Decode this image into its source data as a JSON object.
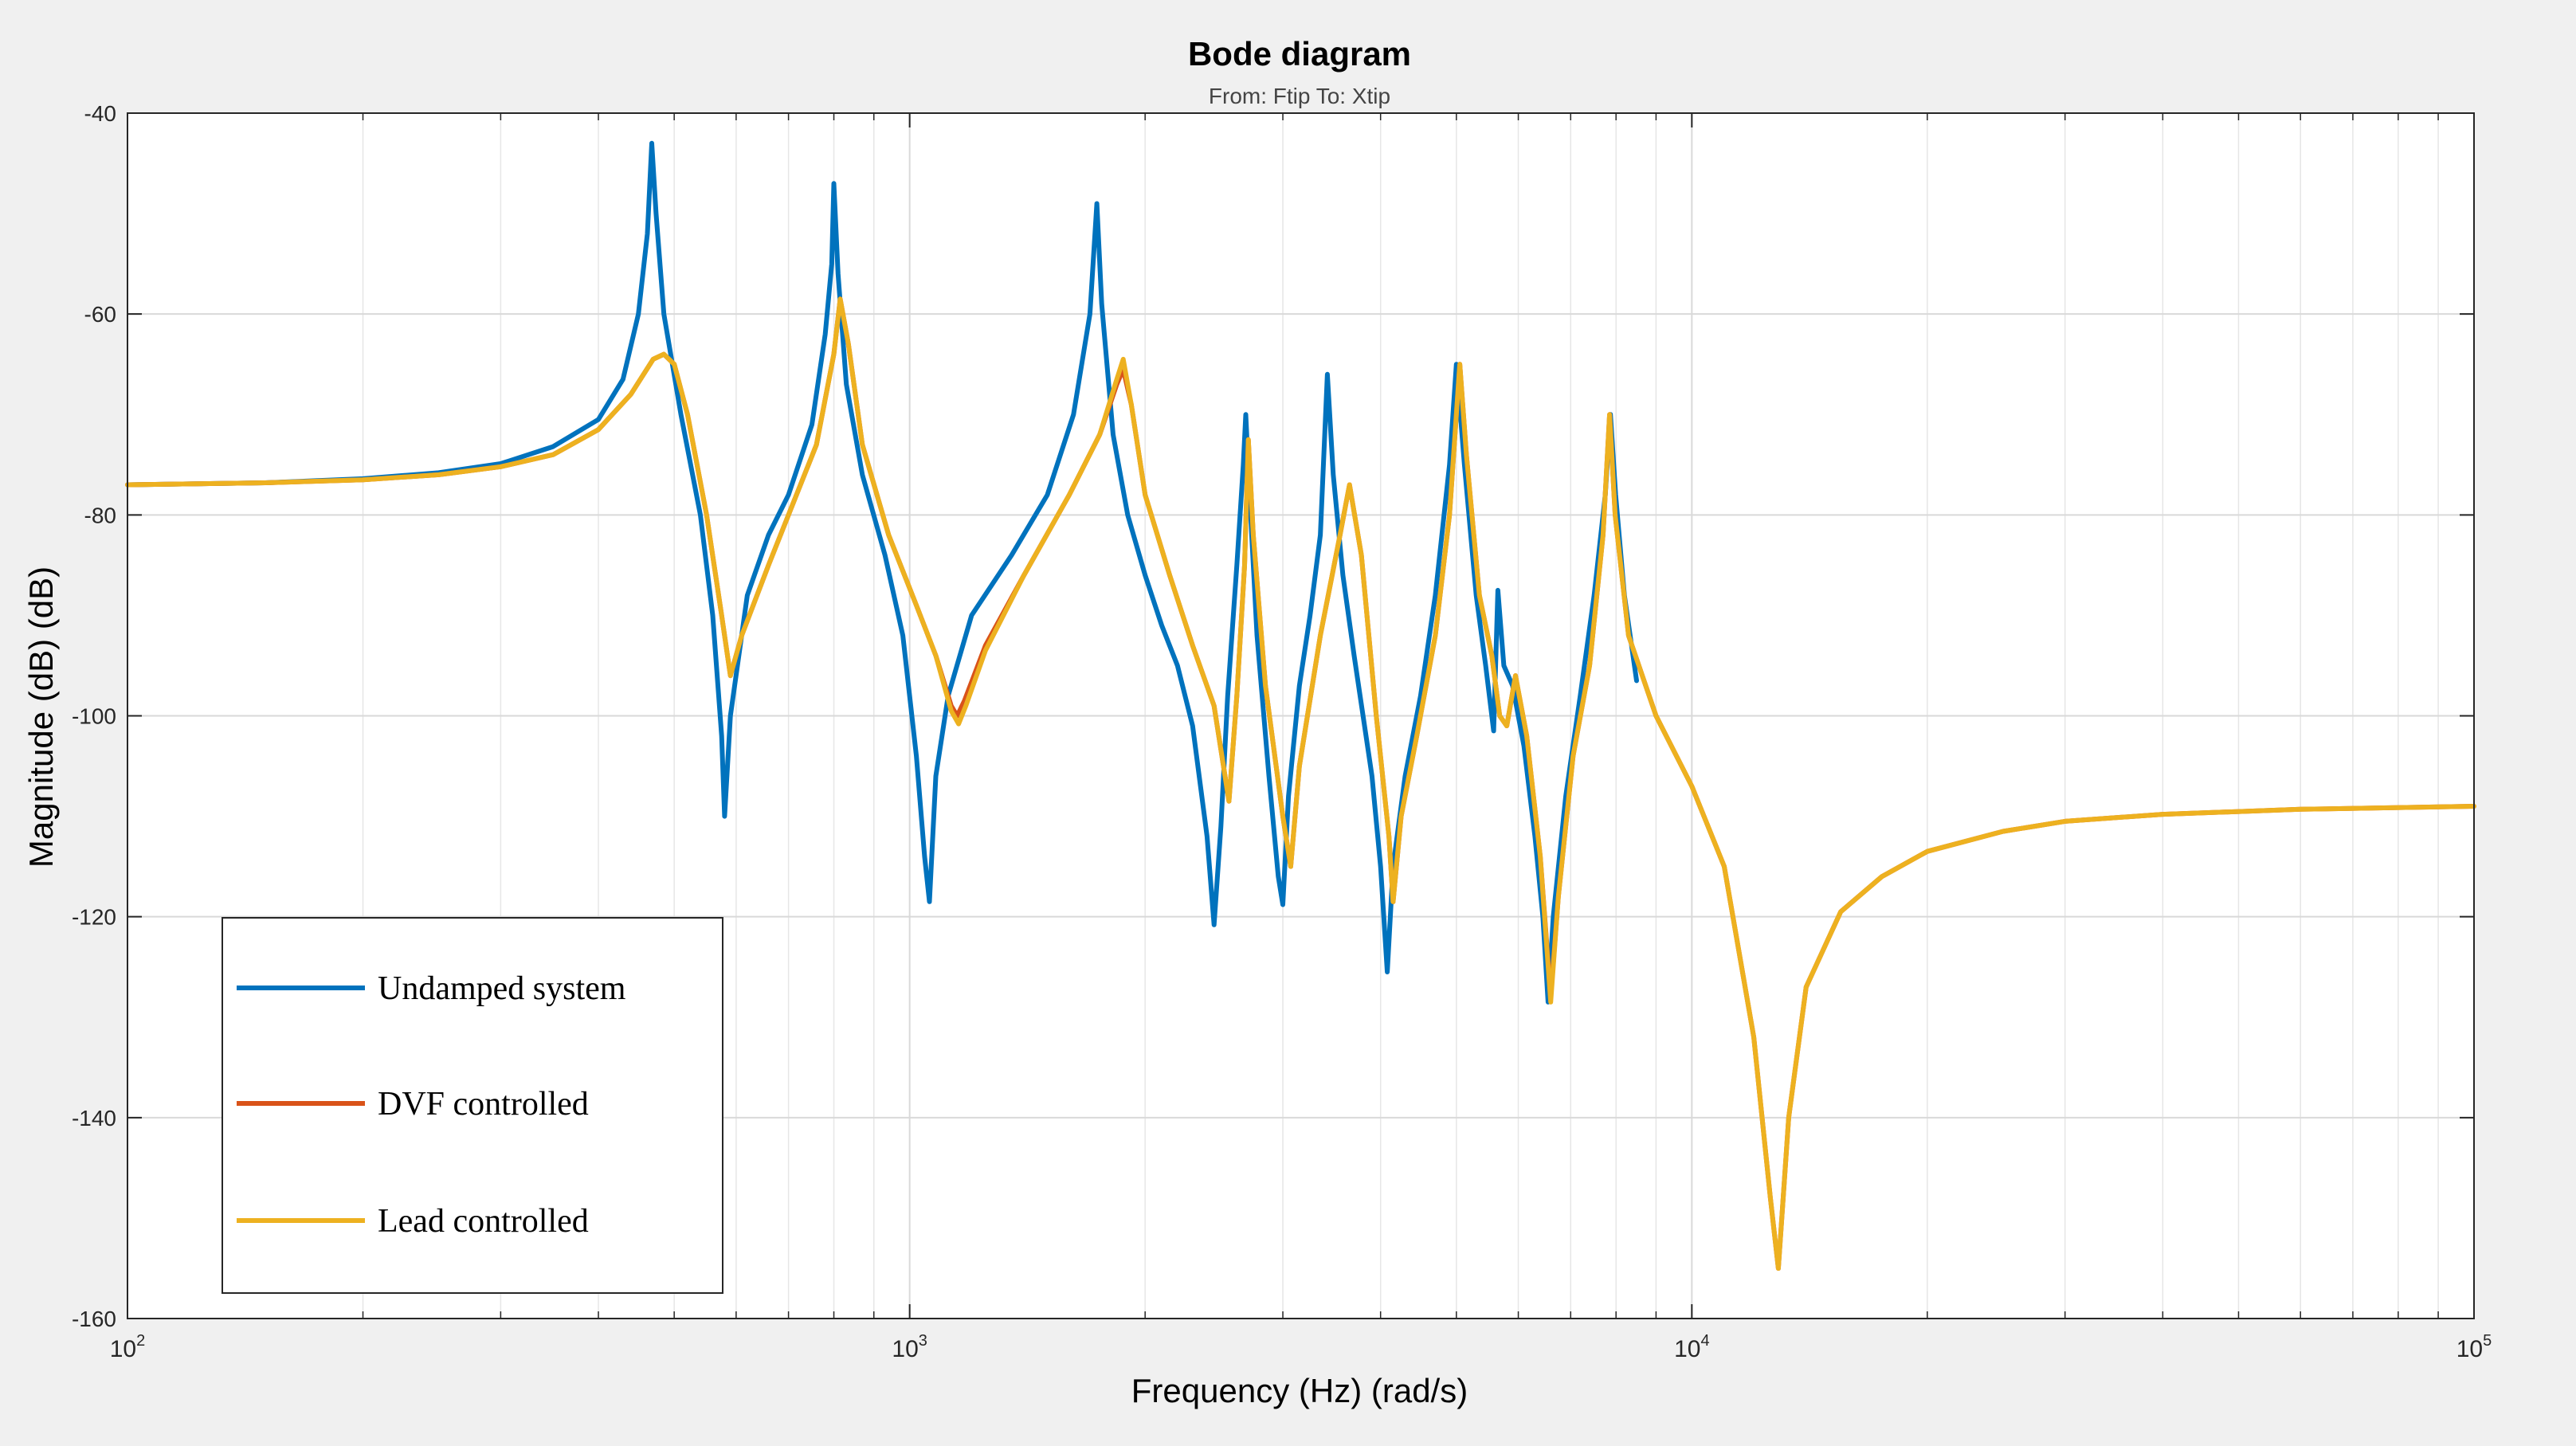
{
  "chart_data": {
    "type": "line",
    "title": "Bode diagram",
    "subtitle": "From: Ftip  To: Xtip",
    "xlabel": "Frequency (Hz)  (rad/s)",
    "ylabel": "Magnitude (dB) (dB)",
    "xscale": "log",
    "xlim": [
      100,
      100000
    ],
    "ylim": [
      -160,
      -40
    ],
    "yticks": [
      -40,
      -60,
      -80,
      -100,
      -120,
      -140,
      -160
    ],
    "xticks": [
      {
        "value": 100,
        "base": "10",
        "exp": "2"
      },
      {
        "value": 1000,
        "base": "10",
        "exp": "3"
      },
      {
        "value": 10000,
        "base": "10",
        "exp": "4"
      },
      {
        "value": 100000,
        "base": "10",
        "exp": "5"
      }
    ],
    "grid": true,
    "legend_position": "bottom-left",
    "series": [
      {
        "name": "Undamped system",
        "color": "#0072bd",
        "points": [
          [
            100,
            -77
          ],
          [
            150,
            -76.8
          ],
          [
            200,
            -76.4
          ],
          [
            250,
            -75.8
          ],
          [
            300,
            -74.9
          ],
          [
            350,
            -73.2
          ],
          [
            400,
            -70.5
          ],
          [
            430,
            -66.5
          ],
          [
            450,
            -60
          ],
          [
            462,
            -52
          ],
          [
            468,
            -43
          ],
          [
            474,
            -50
          ],
          [
            485,
            -60
          ],
          [
            510,
            -70
          ],
          [
            540,
            -80
          ],
          [
            560,
            -90
          ],
          [
            575,
            -102
          ],
          [
            580,
            -110
          ],
          [
            590,
            -100
          ],
          [
            620,
            -88
          ],
          [
            660,
            -82
          ],
          [
            700,
            -78
          ],
          [
            750,
            -71
          ],
          [
            780,
            -62
          ],
          [
            795,
            -55
          ],
          [
            800,
            -47
          ],
          [
            810,
            -56
          ],
          [
            830,
            -67
          ],
          [
            870,
            -76
          ],
          [
            930,
            -84
          ],
          [
            980,
            -92
          ],
          [
            1020,
            -104
          ],
          [
            1045,
            -114
          ],
          [
            1060,
            -118.5
          ],
          [
            1080,
            -106
          ],
          [
            1120,
            -98
          ],
          [
            1200,
            -90
          ],
          [
            1350,
            -84
          ],
          [
            1500,
            -78
          ],
          [
            1620,
            -70
          ],
          [
            1700,
            -60
          ],
          [
            1735,
            -49
          ],
          [
            1760,
            -59
          ],
          [
            1820,
            -72
          ],
          [
            1900,
            -80
          ],
          [
            2000,
            -86
          ],
          [
            2100,
            -91
          ],
          [
            2200,
            -95
          ],
          [
            2300,
            -101
          ],
          [
            2400,
            -112
          ],
          [
            2450,
            -120.8
          ],
          [
            2500,
            -111
          ],
          [
            2550,
            -98
          ],
          [
            2620,
            -85
          ],
          [
            2670,
            -75
          ],
          [
            2690,
            -70
          ],
          [
            2720,
            -78
          ],
          [
            2780,
            -92
          ],
          [
            2880,
            -106
          ],
          [
            2960,
            -116
          ],
          [
            3000,
            -118.8
          ],
          [
            3050,
            -108
          ],
          [
            3150,
            -97
          ],
          [
            3250,
            -90
          ],
          [
            3350,
            -82
          ],
          [
            3420,
            -66
          ],
          [
            3480,
            -76
          ],
          [
            3580,
            -86
          ],
          [
            3700,
            -94
          ],
          [
            3900,
            -106
          ],
          [
            4000,
            -115
          ],
          [
            4080,
            -125.5
          ],
          [
            4150,
            -115
          ],
          [
            4300,
            -106
          ],
          [
            4500,
            -98
          ],
          [
            4700,
            -88
          ],
          [
            4900,
            -75
          ],
          [
            5000,
            -65
          ],
          [
            5120,
            -75
          ],
          [
            5300,
            -88
          ],
          [
            5450,
            -95
          ],
          [
            5580,
            -101.5
          ],
          [
            5650,
            -87.5
          ],
          [
            5750,
            -95
          ],
          [
            5900,
            -97
          ],
          [
            6100,
            -103
          ],
          [
            6300,
            -112
          ],
          [
            6450,
            -120
          ],
          [
            6550,
            -128.5
          ],
          [
            6650,
            -120
          ],
          [
            6900,
            -108
          ],
          [
            7200,
            -98
          ],
          [
            7500,
            -88
          ],
          [
            7750,
            -78
          ],
          [
            7870,
            -70
          ],
          [
            7990,
            -78
          ],
          [
            8200,
            -88
          ],
          [
            8500,
            -96.5
          ]
        ]
      },
      {
        "name": "DVF controlled",
        "color": "#d95319",
        "points": [
          [
            100,
            -77
          ],
          [
            150,
            -76.8
          ],
          [
            200,
            -76.5
          ],
          [
            250,
            -76
          ],
          [
            300,
            -75.2
          ],
          [
            350,
            -74
          ],
          [
            400,
            -71.5
          ],
          [
            440,
            -68
          ],
          [
            470,
            -64.5
          ],
          [
            485,
            -64
          ],
          [
            500,
            -65
          ],
          [
            520,
            -70
          ],
          [
            550,
            -80
          ],
          [
            575,
            -90
          ],
          [
            590,
            -96
          ],
          [
            610,
            -92
          ],
          [
            660,
            -85
          ],
          [
            700,
            -80
          ],
          [
            760,
            -73
          ],
          [
            800,
            -64
          ],
          [
            815,
            -58.5
          ],
          [
            835,
            -63
          ],
          [
            870,
            -73
          ],
          [
            940,
            -82
          ],
          [
            1020,
            -89
          ],
          [
            1080,
            -94
          ],
          [
            1130,
            -99
          ],
          [
            1150,
            -100
          ],
          [
            1175,
            -98.5
          ],
          [
            1250,
            -93
          ],
          [
            1400,
            -86
          ],
          [
            1600,
            -78
          ],
          [
            1750,
            -72
          ],
          [
            1840,
            -67
          ],
          [
            1875,
            -65.5
          ],
          [
            1920,
            -69
          ],
          [
            2000,
            -78
          ],
          [
            2150,
            -86
          ],
          [
            2300,
            -93
          ],
          [
            2450,
            -99
          ],
          [
            2560,
            -108.5
          ],
          [
            2620,
            -98
          ],
          [
            2680,
            -85
          ],
          [
            2710,
            -72.5
          ],
          [
            2750,
            -82
          ],
          [
            2850,
            -97
          ],
          [
            3000,
            -110
          ],
          [
            3070,
            -115
          ],
          [
            3150,
            -105
          ],
          [
            3350,
            -92
          ],
          [
            3550,
            -82
          ],
          [
            3650,
            -77
          ],
          [
            3780,
            -84
          ],
          [
            3950,
            -100
          ],
          [
            4100,
            -112
          ],
          [
            4150,
            -118.5
          ],
          [
            4250,
            -110
          ],
          [
            4450,
            -102
          ],
          [
            4700,
            -92
          ],
          [
            4900,
            -80
          ],
          [
            5050,
            -65
          ],
          [
            5150,
            -74
          ],
          [
            5350,
            -88
          ],
          [
            5550,
            -94
          ],
          [
            5680,
            -100
          ],
          [
            5800,
            -101
          ],
          [
            5950,
            -96
          ],
          [
            6150,
            -102
          ],
          [
            6400,
            -114
          ],
          [
            6600,
            -128
          ],
          [
            6750,
            -118
          ],
          [
            7050,
            -104
          ],
          [
            7400,
            -95
          ],
          [
            7700,
            -82
          ],
          [
            7850,
            -70
          ],
          [
            7980,
            -80
          ],
          [
            8300,
            -92
          ],
          [
            9000,
            -100
          ],
          [
            10000,
            -107
          ],
          [
            11000,
            -115
          ],
          [
            12000,
            -132
          ],
          [
            12600,
            -148
          ],
          [
            12900,
            -155
          ],
          [
            13300,
            -140
          ],
          [
            14000,
            -127
          ],
          [
            15500,
            -119.5
          ],
          [
            17500,
            -116
          ],
          [
            20000,
            -113.5
          ],
          [
            25000,
            -111.5
          ],
          [
            30000,
            -110.5
          ],
          [
            40000,
            -109.8
          ],
          [
            60000,
            -109.3
          ],
          [
            100000,
            -109
          ]
        ]
      },
      {
        "name": "Lead controlled",
        "color": "#edb120",
        "points": [
          [
            100,
            -77
          ],
          [
            150,
            -76.8
          ],
          [
            200,
            -76.5
          ],
          [
            250,
            -76
          ],
          [
            300,
            -75.2
          ],
          [
            350,
            -74
          ],
          [
            400,
            -71.5
          ],
          [
            440,
            -68
          ],
          [
            470,
            -64.5
          ],
          [
            485,
            -64
          ],
          [
            500,
            -65
          ],
          [
            520,
            -70
          ],
          [
            550,
            -80
          ],
          [
            575,
            -90
          ],
          [
            590,
            -96
          ],
          [
            610,
            -92
          ],
          [
            660,
            -85
          ],
          [
            700,
            -80
          ],
          [
            760,
            -73
          ],
          [
            800,
            -64
          ],
          [
            815,
            -58.5
          ],
          [
            835,
            -63
          ],
          [
            870,
            -73
          ],
          [
            940,
            -82
          ],
          [
            1020,
            -89
          ],
          [
            1080,
            -94
          ],
          [
            1130,
            -99.5
          ],
          [
            1155,
            -100.8
          ],
          [
            1180,
            -99
          ],
          [
            1250,
            -93.5
          ],
          [
            1400,
            -86
          ],
          [
            1600,
            -78
          ],
          [
            1750,
            -72
          ],
          [
            1840,
            -66.5
          ],
          [
            1875,
            -64.5
          ],
          [
            1920,
            -69
          ],
          [
            2000,
            -78
          ],
          [
            2150,
            -86
          ],
          [
            2300,
            -93
          ],
          [
            2450,
            -99
          ],
          [
            2560,
            -108.5
          ],
          [
            2620,
            -98
          ],
          [
            2680,
            -85
          ],
          [
            2710,
            -72.5
          ],
          [
            2750,
            -82
          ],
          [
            2850,
            -97
          ],
          [
            3000,
            -110
          ],
          [
            3070,
            -115
          ],
          [
            3150,
            -105
          ],
          [
            3350,
            -92
          ],
          [
            3550,
            -82
          ],
          [
            3650,
            -77
          ],
          [
            3780,
            -84
          ],
          [
            3950,
            -100
          ],
          [
            4100,
            -112
          ],
          [
            4150,
            -118.5
          ],
          [
            4250,
            -110
          ],
          [
            4450,
            -102
          ],
          [
            4700,
            -92
          ],
          [
            4900,
            -80
          ],
          [
            5050,
            -65
          ],
          [
            5150,
            -74
          ],
          [
            5350,
            -88
          ],
          [
            5550,
            -94
          ],
          [
            5680,
            -100
          ],
          [
            5800,
            -101
          ],
          [
            5950,
            -96
          ],
          [
            6150,
            -102
          ],
          [
            6400,
            -114
          ],
          [
            6600,
            -128.5
          ],
          [
            6750,
            -118
          ],
          [
            7050,
            -104
          ],
          [
            7400,
            -95
          ],
          [
            7700,
            -82
          ],
          [
            7850,
            -70
          ],
          [
            7980,
            -80
          ],
          [
            8300,
            -92
          ],
          [
            9000,
            -100
          ],
          [
            10000,
            -107
          ],
          [
            11000,
            -115
          ],
          [
            12000,
            -132
          ],
          [
            12600,
            -148
          ],
          [
            12900,
            -155
          ],
          [
            13300,
            -140
          ],
          [
            14000,
            -127
          ],
          [
            15500,
            -119.5
          ],
          [
            17500,
            -116
          ],
          [
            20000,
            -113.5
          ],
          [
            25000,
            -111.5
          ],
          [
            30000,
            -110.5
          ],
          [
            40000,
            -109.8
          ],
          [
            60000,
            -109.3
          ],
          [
            100000,
            -109
          ]
        ]
      }
    ]
  }
}
